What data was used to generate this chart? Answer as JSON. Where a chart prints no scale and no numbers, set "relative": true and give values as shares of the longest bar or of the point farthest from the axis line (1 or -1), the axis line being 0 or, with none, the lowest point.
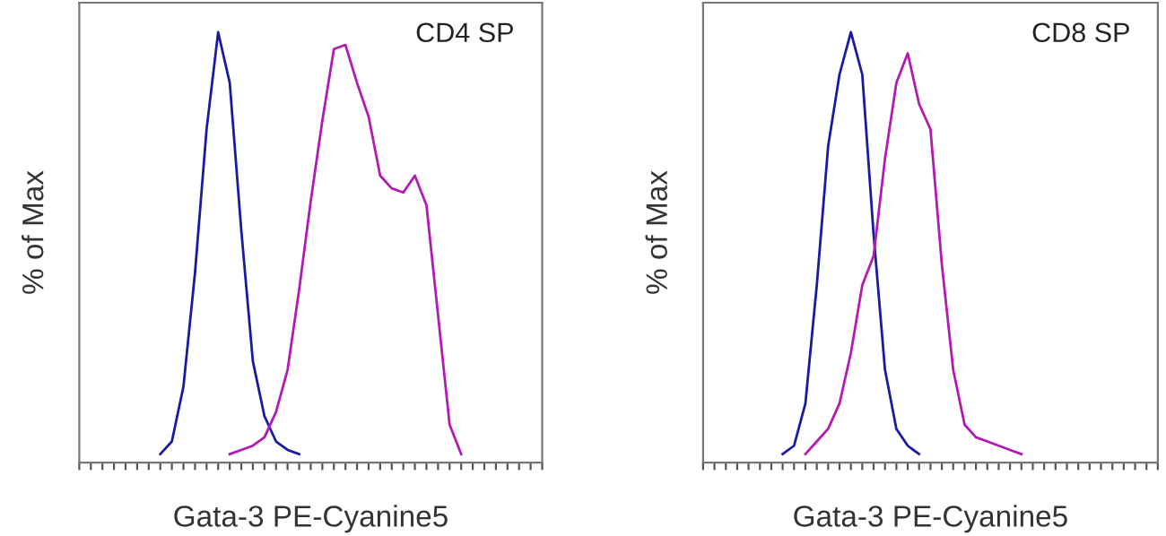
{
  "chart_data": [
    {
      "type": "line",
      "relative": true,
      "xlabel": "Gata-3 PE-Cyanine5",
      "ylabel": "% of Max",
      "annotations": [
        "CD4 SP"
      ],
      "tick_labels": false,
      "grid": false,
      "legend": false,
      "marker": "none",
      "line_style": "solid",
      "categories": [
        null,
        null,
        null,
        null,
        null,
        null,
        null,
        null,
        null,
        null,
        null,
        null,
        null,
        null,
        null,
        null,
        null,
        null,
        null,
        null,
        null,
        null,
        null,
        null,
        null,
        null,
        null,
        null,
        null,
        null,
        null,
        null,
        null,
        null,
        null,
        null,
        null,
        null,
        null,
        null,
        null
      ],
      "series": [
        {
          "color": "#1a1aa0",
          "values": [
            null,
            null,
            null,
            null,
            null,
            null,
            null,
            0,
            0.03,
            0.16,
            0.43,
            0.77,
            1.0,
            0.88,
            0.53,
            0.22,
            0.09,
            0.03,
            0.01,
            0,
            null,
            null,
            null,
            null,
            null,
            null,
            null,
            null,
            null,
            null,
            null,
            null,
            null,
            null,
            null,
            null,
            null,
            null,
            null,
            null,
            null
          ]
        },
        {
          "color": "#b31ab3",
          "values": [
            null,
            null,
            null,
            null,
            null,
            null,
            null,
            null,
            null,
            null,
            null,
            null,
            null,
            0,
            0.01,
            0.02,
            0.04,
            0.1,
            0.2,
            0.39,
            0.6,
            0.79,
            0.96,
            0.97,
            0.88,
            0.8,
            0.66,
            0.63,
            0.62,
            0.66,
            0.59,
            0.33,
            0.07,
            0,
            null,
            null,
            null,
            null,
            null,
            null,
            null
          ]
        }
      ]
    },
    {
      "type": "line",
      "relative": true,
      "xlabel": "Gata-3 PE-Cyanine5",
      "ylabel": "% of Max",
      "annotations": [
        "CD8 SP"
      ],
      "tick_labels": false,
      "grid": false,
      "legend": false,
      "marker": "none",
      "line_style": "solid",
      "categories": [
        null,
        null,
        null,
        null,
        null,
        null,
        null,
        null,
        null,
        null,
        null,
        null,
        null,
        null,
        null,
        null,
        null,
        null,
        null,
        null,
        null,
        null,
        null,
        null,
        null,
        null,
        null,
        null,
        null,
        null,
        null,
        null,
        null,
        null,
        null,
        null,
        null,
        null,
        null,
        null,
        null
      ],
      "series": [
        {
          "color": "#1a1aa0",
          "values": [
            null,
            null,
            null,
            null,
            null,
            null,
            null,
            0,
            0.02,
            0.12,
            0.4,
            0.73,
            0.9,
            1.0,
            0.9,
            0.52,
            0.2,
            0.06,
            0.02,
            0,
            null,
            null,
            null,
            null,
            null,
            null,
            null,
            null,
            null,
            null,
            null,
            null,
            null,
            null,
            null,
            null,
            null,
            null,
            null,
            null,
            null
          ]
        },
        {
          "color": "#b31ab3",
          "values": [
            null,
            null,
            null,
            null,
            null,
            null,
            null,
            null,
            null,
            0,
            0.03,
            0.06,
            0.12,
            0.24,
            0.4,
            0.47,
            0.7,
            0.88,
            0.95,
            0.83,
            0.77,
            0.45,
            0.2,
            0.07,
            0.04,
            0.03,
            0.02,
            0.01,
            0,
            null,
            null,
            null,
            null,
            null,
            null,
            null,
            null,
            null,
            null,
            null,
            null
          ]
        }
      ]
    }
  ]
}
